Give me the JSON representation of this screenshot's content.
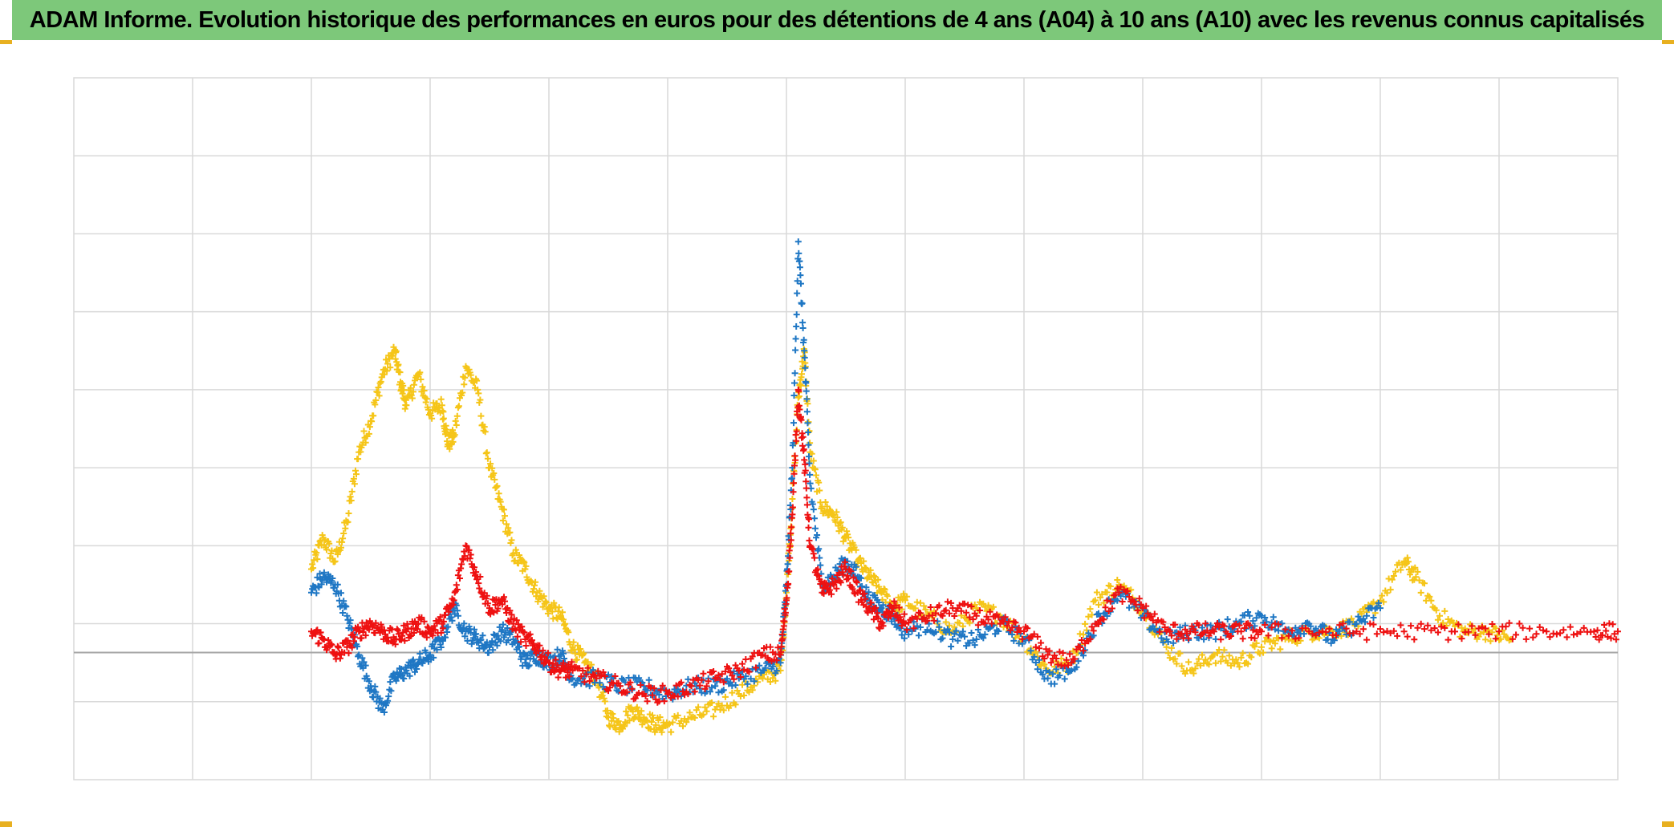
{
  "header": {
    "title": "ADAM Informe. Evolution historique des performances en euros pour des détentions de 4 ans (A04) à 10 ans (A10) avec les revenus connus capitalisés"
  },
  "colors": {
    "banner": "#7dc87a",
    "accent_corner": "#e8b020",
    "grid": "#d9d9d9",
    "axis": "#a6a6a6",
    "blue": "#1f77c4",
    "red": "#ee1111",
    "yellow": "#f5c518"
  },
  "chart_data": {
    "type": "scatter",
    "marker": "plus",
    "grid": true,
    "legend": "none",
    "xlim": [
      0,
      13
    ],
    "ylim": [
      -1,
      8
    ],
    "baseline_y": 0.63,
    "series": [
      {
        "color": "#f5c518",
        "points": [
          [
            2.0,
            1.7
          ],
          [
            2.1,
            2.1
          ],
          [
            2.2,
            1.8
          ],
          [
            2.3,
            2.3
          ],
          [
            2.4,
            3.2
          ],
          [
            2.5,
            3.6
          ],
          [
            2.6,
            4.2
          ],
          [
            2.7,
            4.5
          ],
          [
            2.75,
            4.1
          ],
          [
            2.8,
            3.8
          ],
          [
            2.9,
            4.2
          ],
          [
            3.0,
            3.7
          ],
          [
            3.1,
            3.8
          ],
          [
            3.15,
            3.3
          ],
          [
            3.2,
            3.4
          ],
          [
            3.3,
            4.3
          ],
          [
            3.4,
            4.0
          ],
          [
            3.5,
            3.0
          ],
          [
            3.6,
            2.5
          ],
          [
            3.7,
            1.9
          ],
          [
            3.8,
            1.7
          ],
          [
            3.9,
            1.4
          ],
          [
            4.0,
            1.2
          ],
          [
            4.1,
            1.1
          ],
          [
            4.2,
            0.7
          ],
          [
            4.3,
            0.5
          ],
          [
            4.4,
            0.3
          ],
          [
            4.5,
            -0.2
          ],
          [
            4.6,
            -0.3
          ],
          [
            4.7,
            -0.1
          ],
          [
            4.8,
            -0.2
          ],
          [
            4.9,
            -0.3
          ],
          [
            5.0,
            -0.3
          ],
          [
            5.2,
            -0.2
          ],
          [
            5.4,
            -0.1
          ],
          [
            5.6,
            0.1
          ],
          [
            5.8,
            0.3
          ],
          [
            5.95,
            0.4
          ],
          [
            6.0,
            1.4
          ],
          [
            6.05,
            2.6
          ],
          [
            6.1,
            3.9
          ],
          [
            6.15,
            4.5
          ],
          [
            6.2,
            3.2
          ],
          [
            6.3,
            2.5
          ],
          [
            6.4,
            2.4
          ],
          [
            6.5,
            2.1
          ],
          [
            6.6,
            1.8
          ],
          [
            6.7,
            1.6
          ],
          [
            6.8,
            1.4
          ],
          [
            6.9,
            1.2
          ],
          [
            7.0,
            1.3
          ],
          [
            7.2,
            1.1
          ],
          [
            7.4,
            0.9
          ],
          [
            7.6,
            1.2
          ],
          [
            7.8,
            1.1
          ],
          [
            8.0,
            0.8
          ],
          [
            8.2,
            0.4
          ],
          [
            8.4,
            0.5
          ],
          [
            8.6,
            1.3
          ],
          [
            8.8,
            1.5
          ],
          [
            9.0,
            1.2
          ],
          [
            9.2,
            0.7
          ],
          [
            9.4,
            0.4
          ],
          [
            9.6,
            0.6
          ],
          [
            9.8,
            0.5
          ],
          [
            10.0,
            0.7
          ],
          [
            10.2,
            0.8
          ],
          [
            10.4,
            0.9
          ],
          [
            10.6,
            0.9
          ],
          [
            10.8,
            1.0
          ],
          [
            11.0,
            1.3
          ],
          [
            11.2,
            1.8
          ],
          [
            11.3,
            1.6
          ],
          [
            11.5,
            1.1
          ],
          [
            11.7,
            0.9
          ],
          [
            11.9,
            0.9
          ],
          [
            12.1,
            0.8
          ]
        ]
      },
      {
        "color": "#1f77c4",
        "points": [
          [
            2.0,
            1.4
          ],
          [
            2.1,
            1.6
          ],
          [
            2.2,
            1.5
          ],
          [
            2.3,
            1.1
          ],
          [
            2.4,
            0.6
          ],
          [
            2.5,
            0.2
          ],
          [
            2.6,
            -0.1
          ],
          [
            2.7,
            0.3
          ],
          [
            2.8,
            0.4
          ],
          [
            2.9,
            0.5
          ],
          [
            3.0,
            0.6
          ],
          [
            3.1,
            0.8
          ],
          [
            3.2,
            1.2
          ],
          [
            3.3,
            0.9
          ],
          [
            3.4,
            0.8
          ],
          [
            3.5,
            0.7
          ],
          [
            3.6,
            0.9
          ],
          [
            3.7,
            0.8
          ],
          [
            3.8,
            0.5
          ],
          [
            3.9,
            0.6
          ],
          [
            4.0,
            0.5
          ],
          [
            4.1,
            0.6
          ],
          [
            4.2,
            0.3
          ],
          [
            4.4,
            0.3
          ],
          [
            4.6,
            0.2
          ],
          [
            4.8,
            0.2
          ],
          [
            5.0,
            0.1
          ],
          [
            5.2,
            0.2
          ],
          [
            5.4,
            0.2
          ],
          [
            5.6,
            0.3
          ],
          [
            5.8,
            0.4
          ],
          [
            5.95,
            0.5
          ],
          [
            6.0,
            1.5
          ],
          [
            6.05,
            3.0
          ],
          [
            6.1,
            5.9
          ],
          [
            6.15,
            4.5
          ],
          [
            6.2,
            2.8
          ],
          [
            6.3,
            1.5
          ],
          [
            6.4,
            1.6
          ],
          [
            6.5,
            1.8
          ],
          [
            6.6,
            1.6
          ],
          [
            6.7,
            1.3
          ],
          [
            6.8,
            1.2
          ],
          [
            6.9,
            1.1
          ],
          [
            7.0,
            0.9
          ],
          [
            7.2,
            1.0
          ],
          [
            7.4,
            0.8
          ],
          [
            7.6,
            0.8
          ],
          [
            7.8,
            1.0
          ],
          [
            8.0,
            0.8
          ],
          [
            8.2,
            0.3
          ],
          [
            8.4,
            0.4
          ],
          [
            8.6,
            1.0
          ],
          [
            8.8,
            1.4
          ],
          [
            9.0,
            1.1
          ],
          [
            9.2,
            0.8
          ],
          [
            9.4,
            0.9
          ],
          [
            9.6,
            0.9
          ],
          [
            9.8,
            1.0
          ],
          [
            10.0,
            1.1
          ],
          [
            10.2,
            0.9
          ],
          [
            10.4,
            1.0
          ],
          [
            10.6,
            0.8
          ],
          [
            10.8,
            1.0
          ],
          [
            11.0,
            1.2
          ]
        ]
      },
      {
        "color": "#ee1111",
        "points": [
          [
            2.0,
            0.9
          ],
          [
            2.1,
            0.8
          ],
          [
            2.2,
            0.6
          ],
          [
            2.3,
            0.7
          ],
          [
            2.4,
            0.9
          ],
          [
            2.5,
            1.0
          ],
          [
            2.6,
            0.9
          ],
          [
            2.7,
            0.8
          ],
          [
            2.8,
            0.9
          ],
          [
            2.9,
            1.0
          ],
          [
            3.0,
            0.9
          ],
          [
            3.1,
            1.0
          ],
          [
            3.2,
            1.3
          ],
          [
            3.3,
            2.0
          ],
          [
            3.4,
            1.6
          ],
          [
            3.5,
            1.2
          ],
          [
            3.6,
            1.3
          ],
          [
            3.7,
            1.0
          ],
          [
            3.8,
            0.8
          ],
          [
            3.9,
            0.7
          ],
          [
            4.0,
            0.5
          ],
          [
            4.1,
            0.4
          ],
          [
            4.2,
            0.4
          ],
          [
            4.4,
            0.3
          ],
          [
            4.6,
            0.2
          ],
          [
            4.8,
            0.1
          ],
          [
            5.0,
            0.1
          ],
          [
            5.2,
            0.2
          ],
          [
            5.4,
            0.3
          ],
          [
            5.6,
            0.4
          ],
          [
            5.8,
            0.6
          ],
          [
            5.95,
            0.6
          ],
          [
            6.0,
            1.3
          ],
          [
            6.05,
            2.4
          ],
          [
            6.1,
            4.0
          ],
          [
            6.15,
            3.1
          ],
          [
            6.2,
            2.0
          ],
          [
            6.3,
            1.4
          ],
          [
            6.4,
            1.5
          ],
          [
            6.5,
            1.7
          ],
          [
            6.6,
            1.4
          ],
          [
            6.7,
            1.2
          ],
          [
            6.8,
            1.0
          ],
          [
            6.9,
            1.2
          ],
          [
            7.0,
            1.0
          ],
          [
            7.2,
            1.1
          ],
          [
            7.4,
            1.2
          ],
          [
            7.6,
            1.1
          ],
          [
            7.8,
            1.0
          ],
          [
            8.0,
            0.9
          ],
          [
            8.2,
            0.6
          ],
          [
            8.4,
            0.5
          ],
          [
            8.6,
            1.0
          ],
          [
            8.8,
            1.4
          ],
          [
            9.0,
            1.2
          ],
          [
            9.2,
            0.9
          ],
          [
            9.4,
            0.9
          ],
          [
            9.6,
            0.9
          ],
          [
            9.8,
            0.9
          ],
          [
            10.0,
            0.9
          ],
          [
            10.4,
            0.9
          ],
          [
            10.8,
            0.9
          ],
          [
            11.2,
            0.9
          ],
          [
            11.6,
            0.9
          ],
          [
            12.0,
            0.9
          ],
          [
            12.4,
            0.9
          ],
          [
            12.8,
            0.9
          ],
          [
            13.0,
            0.9
          ]
        ]
      }
    ]
  }
}
